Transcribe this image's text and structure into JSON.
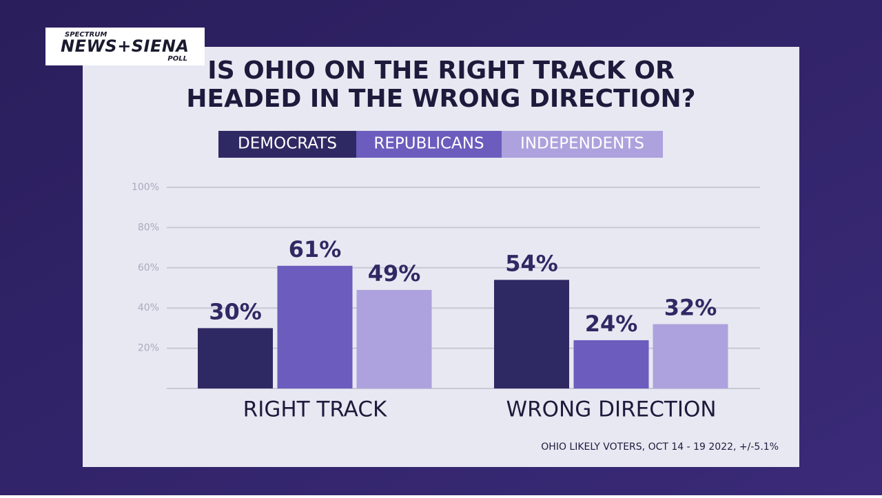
{
  "logo": {
    "top": "SPECTRUM",
    "main": "NEWS+SIENA",
    "bottom": "POLL"
  },
  "chart_data": {
    "type": "bar",
    "title": [
      "IS OHIO ON THE RIGHT TRACK OR",
      "HEADED IN THE WRONG DIRECTION?"
    ],
    "categories": [
      "RIGHT TRACK",
      "WRONG DIRECTION"
    ],
    "series": [
      {
        "name": "DEMOCRATS",
        "color": "#2f2963",
        "values": [
          30,
          54
        ],
        "value_labels": [
          "30%",
          "54%"
        ]
      },
      {
        "name": "REPUBLICANS",
        "color": "#6b5cbd",
        "values": [
          61,
          24
        ],
        "value_labels": [
          "61%",
          "24%"
        ]
      },
      {
        "name": "INDEPENDENTS",
        "color": "#ada2dd",
        "values": [
          49,
          32
        ],
        "value_labels": [
          "49%",
          "32%"
        ]
      }
    ],
    "ylim": [
      0,
      100
    ],
    "yticks": [
      {
        "value": 20,
        "label": "20%"
      },
      {
        "value": 40,
        "label": "40%"
      },
      {
        "value": 60,
        "label": "60%"
      },
      {
        "value": 80,
        "label": "80%"
      },
      {
        "value": 100,
        "label": "100%"
      }
    ],
    "grid": true,
    "source": "OHIO LIKELY VOTERS, OCT 14 - 19 2022, +/-5.1%"
  }
}
